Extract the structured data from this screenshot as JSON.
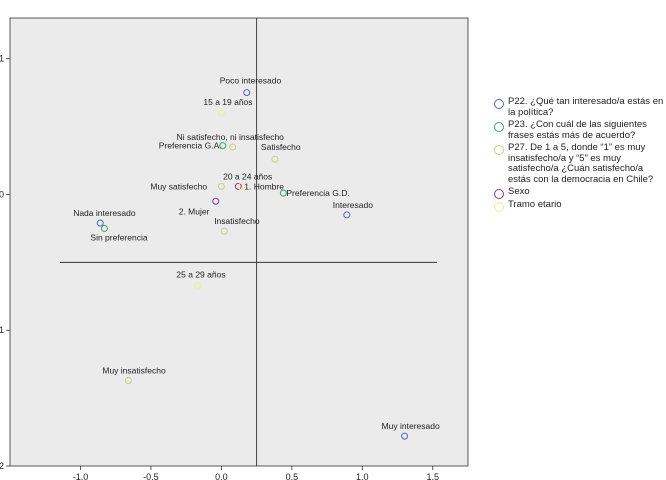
{
  "chart_data": {
    "type": "scatter",
    "title": "",
    "xlabel": "",
    "ylabel": "",
    "xlim": [
      -1.5,
      1.75
    ],
    "ylim": [
      -2,
      1.3
    ],
    "x_ticks": [
      -1.0,
      -0.5,
      0.0,
      0.5,
      1.0,
      1.5
    ],
    "x_tick_labels": [
      "-1.0",
      "-0.5",
      "0.0",
      "0.5",
      "1.0",
      "1.5"
    ],
    "y_ticks": [
      -2,
      -1,
      0,
      1
    ],
    "y_tick_labels": [
      "-2",
      "-1",
      "0",
      "1"
    ],
    "reference_lines": {
      "x": 0.25,
      "y": -0.5
    },
    "grid": false,
    "legend_position": "right",
    "series": [
      {
        "name": "P22. ¿Qué tan interesado/a estás en la política?",
        "color": "#5566bb",
        "points": [
          {
            "label": "Poco interesado",
            "x": 0.18,
            "y": 0.75
          },
          {
            "label": "Interesado",
            "x": 0.89,
            "y": -0.15
          },
          {
            "label": "Nada interesado",
            "x": -0.86,
            "y": -0.21
          },
          {
            "label": "Muy interesado",
            "x": 1.3,
            "y": -1.78
          }
        ]
      },
      {
        "name": "P23. ¿Con cuál de las siguientes frases estás más de acuerdo?",
        "color": "#33aa66",
        "points": [
          {
            "label": "Preferencia G.A.",
            "x": 0.01,
            "y": 0.36
          },
          {
            "label": "Preferencia G.D.",
            "x": 0.44,
            "y": 0.01
          },
          {
            "label": "Sin preferencia",
            "x": -0.83,
            "y": -0.25
          }
        ]
      },
      {
        "name": "P27. De 1 a 5, donde “1” es muy insatisfecho/a y “5” es muy satisfecho/a ¿Cuán satisfecho/a estás con la democracia en Chile?",
        "color": "#cccc88",
        "points": [
          {
            "label": "Ni satisfecho, ni insatisfecho",
            "x": 0.08,
            "y": 0.35
          },
          {
            "label": "Satisfecho",
            "x": 0.38,
            "y": 0.26
          },
          {
            "label": "Muy satisfecho",
            "x": 0.0,
            "y": 0.06
          },
          {
            "label": "Insatisfecho",
            "x": 0.02,
            "y": -0.27
          },
          {
            "label": "Muy insatisfecho",
            "x": -0.66,
            "y": -1.37
          }
        ]
      },
      {
        "name": "Sexo",
        "color": "#883399",
        "points": [
          {
            "label": "1. Hombre",
            "x": 0.12,
            "y": 0.06
          },
          {
            "label": "2. Mujer",
            "x": -0.04,
            "y": -0.05
          }
        ]
      },
      {
        "name": "Tramo etario",
        "color": "#eeee99",
        "points": [
          {
            "label": "15 a 19 años",
            "x": 0.0,
            "y": 0.6
          },
          {
            "label": "20 a 24 años",
            "x": 0.14,
            "y": 0.06
          },
          {
            "label": "25 a 29 años",
            "x": -0.17,
            "y": -0.67
          }
        ]
      }
    ]
  }
}
